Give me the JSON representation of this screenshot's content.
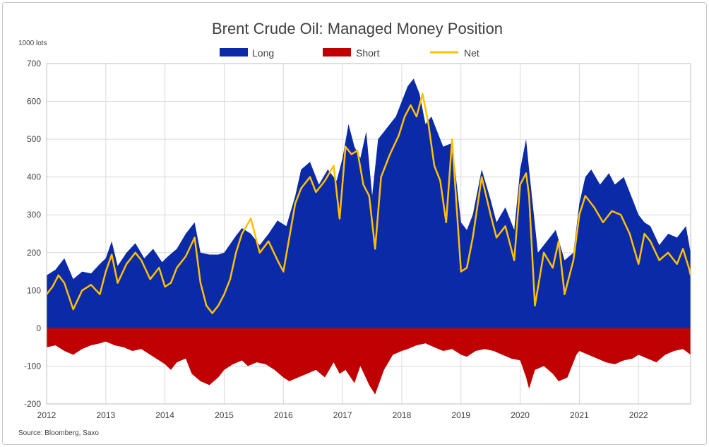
{
  "chart_data": {
    "type": "area",
    "title": "Brent Crude Oil: Managed Money Position",
    "unit_label": "1000 lots",
    "source": "Source:  Bloomberg,  Saxo",
    "legend": {
      "placement": "top-center",
      "entries": [
        "Long",
        "Short",
        "Net"
      ]
    },
    "x_ticks": [
      "2012",
      "2013",
      "2014",
      "2015",
      "2016",
      "2017",
      "2018",
      "2019",
      "2020",
      "2021",
      "2022"
    ],
    "y_ticks": [
      "-200",
      "-100",
      "0",
      "100",
      "200",
      "300",
      "400",
      "500",
      "600",
      "700"
    ],
    "ylim": [
      -200,
      700
    ],
    "xlim": [
      2012.0,
      2022.88
    ],
    "grid": true,
    "colors": {
      "long": "#0a2aa8",
      "short": "#c00000",
      "net": "#ffc000"
    },
    "series": [
      {
        "name": "Long",
        "x": [
          2012.0,
          2012.15,
          2012.3,
          2012.45,
          2012.6,
          2012.75,
          2012.9,
          2013.0,
          2013.1,
          2013.2,
          2013.35,
          2013.5,
          2013.65,
          2013.8,
          2013.95,
          2014.05,
          2014.2,
          2014.35,
          2014.5,
          2014.6,
          2014.75,
          2014.9,
          2015.0,
          2015.2,
          2015.3,
          2015.45,
          2015.6,
          2015.75,
          2015.9,
          2016.05,
          2016.2,
          2016.3,
          2016.45,
          2016.6,
          2016.75,
          2016.9,
          2017.0,
          2017.1,
          2017.2,
          2017.3,
          2017.4,
          2017.5,
          2017.6,
          2017.75,
          2017.9,
          2018.0,
          2018.1,
          2018.2,
          2018.3,
          2018.4,
          2018.5,
          2018.6,
          2018.7,
          2018.85,
          2019.0,
          2019.1,
          2019.2,
          2019.35,
          2019.5,
          2019.6,
          2019.75,
          2019.9,
          2020.0,
          2020.1,
          2020.15,
          2020.3,
          2020.45,
          2020.6,
          2020.75,
          2020.9,
          2021.0,
          2021.1,
          2021.2,
          2021.35,
          2021.5,
          2021.6,
          2021.75,
          2021.9,
          2022.0,
          2022.1,
          2022.2,
          2022.35,
          2022.5,
          2022.65,
          2022.8,
          2022.88
        ],
        "values": [
          140,
          155,
          185,
          130,
          150,
          145,
          170,
          185,
          230,
          165,
          200,
          225,
          185,
          210,
          175,
          190,
          210,
          250,
          280,
          200,
          195,
          195,
          200,
          245,
          265,
          250,
          220,
          250,
          285,
          270,
          350,
          420,
          440,
          380,
          420,
          390,
          450,
          540,
          480,
          450,
          520,
          350,
          500,
          530,
          560,
          600,
          640,
          660,
          620,
          540,
          560,
          520,
          480,
          490,
          280,
          260,
          300,
          420,
          340,
          280,
          320,
          260,
          420,
          500,
          420,
          200,
          230,
          260,
          180,
          200,
          330,
          400,
          420,
          380,
          410,
          380,
          400,
          340,
          300,
          280,
          270,
          220,
          250,
          240,
          270,
          200
        ]
      },
      {
        "name": "Short",
        "x": [
          2012.0,
          2012.15,
          2012.3,
          2012.45,
          2012.6,
          2012.75,
          2012.9,
          2013.0,
          2013.15,
          2013.3,
          2013.45,
          2013.6,
          2013.75,
          2013.9,
          2014.0,
          2014.1,
          2014.2,
          2014.35,
          2014.45,
          2014.6,
          2014.75,
          2014.9,
          2015.0,
          2015.15,
          2015.3,
          2015.4,
          2015.55,
          2015.7,
          2015.85,
          2016.0,
          2016.1,
          2016.25,
          2016.4,
          2016.55,
          2016.7,
          2016.85,
          2016.95,
          2017.05,
          2017.2,
          2017.3,
          2017.45,
          2017.55,
          2017.7,
          2017.85,
          2018.0,
          2018.1,
          2018.25,
          2018.4,
          2018.55,
          2018.7,
          2018.85,
          2019.0,
          2019.1,
          2019.25,
          2019.4,
          2019.55,
          2019.7,
          2019.85,
          2020.0,
          2020.1,
          2020.15,
          2020.25,
          2020.4,
          2020.55,
          2020.65,
          2020.8,
          2020.95,
          2021.0,
          2021.15,
          2021.3,
          2021.45,
          2021.6,
          2021.75,
          2021.9,
          2022.0,
          2022.15,
          2022.3,
          2022.45,
          2022.6,
          2022.75,
          2022.88
        ],
        "values": [
          -50,
          -45,
          -60,
          -70,
          -55,
          -45,
          -40,
          -35,
          -45,
          -50,
          -60,
          -55,
          -70,
          -85,
          -95,
          -110,
          -90,
          -80,
          -120,
          -140,
          -150,
          -130,
          -110,
          -95,
          -85,
          -100,
          -90,
          -95,
          -110,
          -130,
          -140,
          -130,
          -120,
          -110,
          -130,
          -90,
          -120,
          -110,
          -145,
          -100,
          -150,
          -175,
          -110,
          -70,
          -60,
          -55,
          -45,
          -40,
          -50,
          -60,
          -55,
          -70,
          -75,
          -60,
          -55,
          -60,
          -70,
          -80,
          -85,
          -130,
          -160,
          -110,
          -100,
          -120,
          -140,
          -130,
          -70,
          -60,
          -70,
          -80,
          -90,
          -95,
          -85,
          -80,
          -70,
          -80,
          -90,
          -70,
          -60,
          -55,
          -70
        ]
      },
      {
        "name": "Net",
        "x": [
          2012.0,
          2012.1,
          2012.2,
          2012.3,
          2012.45,
          2012.6,
          2012.75,
          2012.9,
          2013.0,
          2013.1,
          2013.2,
          2013.35,
          2013.5,
          2013.6,
          2013.75,
          2013.9,
          2014.0,
          2014.1,
          2014.2,
          2014.35,
          2014.5,
          2014.6,
          2014.7,
          2014.8,
          2014.9,
          2015.0,
          2015.1,
          2015.2,
          2015.3,
          2015.45,
          2015.6,
          2015.75,
          2015.9,
          2016.0,
          2016.1,
          2016.2,
          2016.3,
          2016.45,
          2016.55,
          2016.7,
          2016.85,
          2016.95,
          2017.05,
          2017.15,
          2017.25,
          2017.35,
          2017.45,
          2017.55,
          2017.65,
          2017.8,
          2017.95,
          2018.05,
          2018.15,
          2018.25,
          2018.35,
          2018.45,
          2018.55,
          2018.65,
          2018.75,
          2018.85,
          2019.0,
          2019.1,
          2019.2,
          2019.35,
          2019.5,
          2019.6,
          2019.75,
          2019.9,
          2020.0,
          2020.1,
          2020.15,
          2020.25,
          2020.4,
          2020.55,
          2020.65,
          2020.75,
          2020.9,
          2021.0,
          2021.1,
          2021.25,
          2021.4,
          2021.55,
          2021.7,
          2021.85,
          2022.0,
          2022.1,
          2022.2,
          2022.35,
          2022.5,
          2022.65,
          2022.75,
          2022.85,
          2022.88
        ],
        "values": [
          90,
          110,
          140,
          120,
          50,
          100,
          115,
          90,
          150,
          195,
          120,
          170,
          200,
          180,
          130,
          160,
          110,
          120,
          160,
          190,
          240,
          120,
          60,
          40,
          60,
          90,
          130,
          200,
          250,
          290,
          200,
          230,
          180,
          150,
          240,
          330,
          370,
          400,
          360,
          390,
          430,
          290,
          480,
          460,
          470,
          380,
          350,
          210,
          400,
          460,
          510,
          560,
          590,
          560,
          620,
          540,
          430,
          390,
          280,
          500,
          150,
          160,
          240,
          400,
          300,
          240,
          270,
          180,
          380,
          410,
          350,
          60,
          200,
          160,
          230,
          90,
          180,
          300,
          350,
          320,
          280,
          310,
          300,
          250,
          170,
          250,
          230,
          180,
          200,
          170,
          210,
          160,
          140
        ]
      }
    ]
  }
}
